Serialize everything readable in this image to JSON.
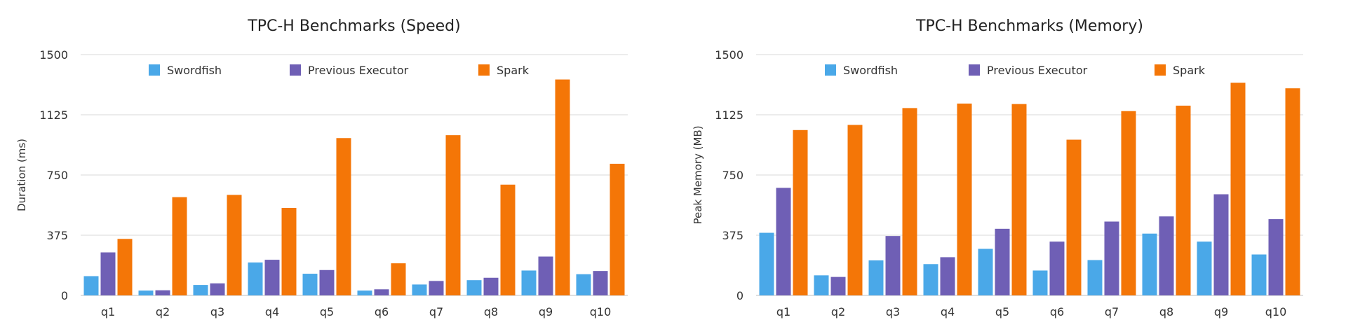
{
  "chart_data": [
    {
      "type": "bar",
      "title": "TPC-H Benchmarks (Speed)",
      "xlabel": "",
      "ylabel": "Duration (ms)",
      "ylim": [
        0,
        1500
      ],
      "yticks": [
        "0",
        "375",
        "750",
        "1125",
        "1500"
      ],
      "grid": true,
      "legend_position": "top",
      "categories": [
        "q1",
        "q2",
        "q3",
        "q4",
        "q5",
        "q6",
        "q7",
        "q8",
        "q9",
        "q10"
      ],
      "series": [
        {
          "name": "Swordfish",
          "color": "#4aa8e8",
          "values": [
            120,
            30,
            65,
            205,
            135,
            30,
            68,
            95,
            155,
            132
          ]
        },
        {
          "name": "Previous Executor",
          "color": "#6f5fb5",
          "values": [
            268,
            32,
            75,
            222,
            158,
            38,
            90,
            110,
            242,
            152
          ]
        },
        {
          "name": "Spark",
          "color": "#f47607",
          "values": [
            352,
            612,
            626,
            545,
            980,
            200,
            998,
            690,
            1345,
            820
          ]
        }
      ]
    },
    {
      "type": "bar",
      "title": "TPC-H Benchmarks (Memory)",
      "xlabel": "",
      "ylabel": "Peak Memory (MB)",
      "ylim": [
        0,
        1500
      ],
      "yticks": [
        "0",
        "375",
        "750",
        "1125",
        "1500"
      ],
      "grid": true,
      "legend_position": "top",
      "categories": [
        "q1",
        "q2",
        "q3",
        "q4",
        "q5",
        "q6",
        "q7",
        "q8",
        "q9",
        "q10"
      ],
      "series": [
        {
          "name": "Swordfish",
          "color": "#4aa8e8",
          "values": [
            390,
            125,
            218,
            195,
            290,
            155,
            220,
            385,
            335,
            255
          ]
        },
        {
          "name": "Previous Executor",
          "color": "#6f5fb5",
          "values": [
            670,
            115,
            370,
            238,
            415,
            335,
            460,
            492,
            630,
            475
          ]
        },
        {
          "name": "Spark",
          "color": "#f47607",
          "values": [
            1030,
            1062,
            1167,
            1195,
            1192,
            970,
            1148,
            1182,
            1325,
            1290
          ]
        }
      ]
    }
  ]
}
